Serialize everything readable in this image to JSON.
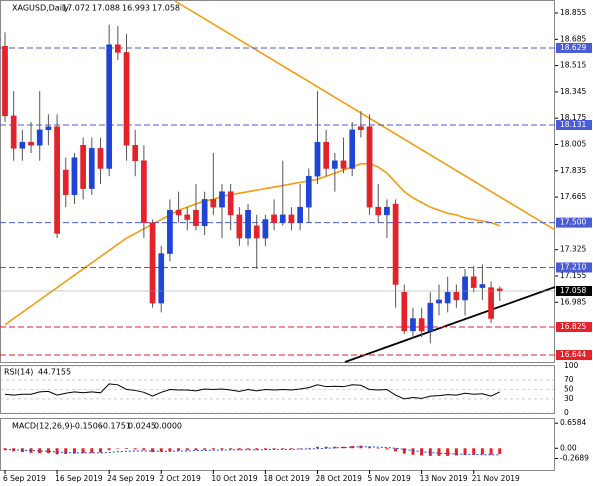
{
  "chart_data": {
    "type": "candlestick",
    "title": "XAGUSD,Daily",
    "categories": [
      "6 Sep 2019",
      null,
      null,
      null,
      null,
      null,
      "16 Sep 2019",
      null,
      null,
      null,
      null,
      null,
      "24 Sep 2019",
      null,
      null,
      null,
      null,
      null,
      "2 Oct 2019",
      null,
      null,
      null,
      null,
      null,
      "10 Oct 2019",
      null,
      null,
      null,
      null,
      null,
      "18 Oct 2019",
      null,
      null,
      null,
      null,
      null,
      "28 Oct 2019",
      null,
      null,
      null,
      null,
      null,
      "5 Nov 2019",
      null,
      null,
      null,
      null,
      null,
      "13 Nov 2019",
      null,
      null,
      null,
      null,
      null,
      "21 Nov 2019",
      null,
      null,
      null
    ],
    "open": [
      18.64,
      18.19,
      17.98,
      18.02,
      18.0,
      18.1,
      18.12,
      17.84,
      17.68,
      18.0,
      17.72,
      17.98,
      17.85,
      18.65,
      18.6,
      18.0,
      17.9,
      17.5,
      16.98,
      17.3,
      17.58,
      17.55,
      17.58,
      17.48,
      17.65,
      17.6,
      17.7,
      17.55,
      17.4,
      17.48,
      17.4,
      17.55,
      17.5,
      17.55,
      17.5,
      17.6,
      17.8,
      18.02,
      17.85,
      17.9,
      17.85,
      18.12,
      18.12,
      17.6,
      17.55,
      17.62,
      17.05,
      16.8,
      16.88,
      16.8,
      16.98,
      16.98,
      17.05,
      17.0,
      17.15,
      17.08,
      17.08,
      17.072
    ],
    "high": [
      18.73,
      18.35,
      18.1,
      18.15,
      18.35,
      18.2,
      18.2,
      17.92,
      17.95,
      18.05,
      18.05,
      18.05,
      18.78,
      18.77,
      18.72,
      18.1,
      18.0,
      17.52,
      17.35,
      17.65,
      17.7,
      17.6,
      17.75,
      17.7,
      17.95,
      17.75,
      17.75,
      17.6,
      17.62,
      17.55,
      17.55,
      17.65,
      17.9,
      17.6,
      17.75,
      17.85,
      18.35,
      18.1,
      17.95,
      18.05,
      18.15,
      18.22,
      18.2,
      17.75,
      17.65,
      17.65,
      17.1,
      16.95,
      16.95,
      17.05,
      17.1,
      17.15,
      17.1,
      17.2,
      17.22,
      17.23,
      17.12,
      17.088
    ],
    "low": [
      18.15,
      17.9,
      17.9,
      17.95,
      17.9,
      18.0,
      17.4,
      17.6,
      17.62,
      17.65,
      17.68,
      17.75,
      17.8,
      18.55,
      17.9,
      17.8,
      17.4,
      16.95,
      16.92,
      17.25,
      17.5,
      17.45,
      17.45,
      17.42,
      17.55,
      17.4,
      17.45,
      17.35,
      17.35,
      17.2,
      17.35,
      17.45,
      17.48,
      17.45,
      17.45,
      17.5,
      17.75,
      17.8,
      17.7,
      17.82,
      17.8,
      18.05,
      17.55,
      17.5,
      17.4,
      16.95,
      16.78,
      16.75,
      16.76,
      16.72,
      16.9,
      16.92,
      16.95,
      16.9,
      17.05,
      17.0,
      16.85,
      16.993
    ],
    "close": [
      18.19,
      17.98,
      18.02,
      18.0,
      18.1,
      18.12,
      17.43,
      17.68,
      17.92,
      17.72,
      17.98,
      17.85,
      18.65,
      18.6,
      18.0,
      17.9,
      17.5,
      16.98,
      17.3,
      17.58,
      17.55,
      17.52,
      17.48,
      17.65,
      17.6,
      17.7,
      17.55,
      17.4,
      17.58,
      17.4,
      17.52,
      17.5,
      17.55,
      17.5,
      17.6,
      17.8,
      18.02,
      17.85,
      17.9,
      17.85,
      18.1,
      18.1,
      17.6,
      17.55,
      17.6,
      17.1,
      16.8,
      16.88,
      16.8,
      16.98,
      17.0,
      17.05,
      17.0,
      17.15,
      17.08,
      17.1,
      16.88,
      17.058
    ],
    "up_color": "#1f45d6",
    "down_color": "#e3222a",
    "ma_color": "#f39c12",
    "ma_values": [
      16.84,
      16.88,
      16.92,
      16.96,
      17.0,
      17.04,
      17.08,
      17.12,
      17.16,
      17.2,
      17.24,
      17.28,
      17.32,
      17.36,
      17.4,
      17.43,
      17.46,
      17.49,
      17.52,
      17.55,
      17.58,
      17.6,
      17.62,
      17.64,
      17.65,
      17.67,
      17.68,
      17.69,
      17.7,
      17.71,
      17.72,
      17.73,
      17.74,
      17.75,
      17.76,
      17.77,
      17.78,
      17.8,
      17.82,
      17.84,
      17.86,
      17.88,
      17.88,
      17.86,
      17.82,
      17.76,
      17.7,
      17.66,
      17.63,
      17.6,
      17.58,
      17.56,
      17.55,
      17.53,
      17.52,
      17.51,
      17.5,
      17.48
    ],
    "ylim": [
      16.599,
      18.939
    ],
    "yticks": [
      18.855,
      18.685,
      18.515,
      18.345,
      18.175,
      18.005,
      17.835,
      17.665,
      17.325,
      17.155,
      16.985
    ],
    "levels": [
      {
        "value": 18.629,
        "color": "#4a5bd6"
      },
      {
        "value": 18.131,
        "color": "#4a5bd6"
      },
      {
        "value": 17.5,
        "label": "17.500",
        "color": "#4a5bd6"
      },
      {
        "value": 17.21,
        "label": "17.210",
        "color": "#4a5bd6"
      },
      {
        "value": 16.825,
        "color": "#e3222a"
      },
      {
        "value": 16.644,
        "color": "#e3222a"
      }
    ],
    "rsi_label": "RSI(14)",
    "rsi_values": [
      40,
      38,
      40,
      40,
      45,
      46,
      38,
      42,
      45,
      43,
      45,
      43,
      62,
      60,
      50,
      48,
      44,
      36,
      44,
      50,
      49,
      49,
      47,
      51,
      50,
      51,
      49,
      46,
      50,
      47,
      50,
      49,
      50,
      49,
      51,
      54,
      60,
      56,
      57,
      56,
      60,
      59,
      50,
      49,
      50,
      38,
      30,
      33,
      31,
      36,
      37,
      39,
      38,
      42,
      40,
      41,
      36,
      44.7155
    ],
    "rsi_ylim": [
      0,
      100
    ],
    "rsi_yticks": [
      100,
      70,
      50,
      30,
      0
    ],
    "macd_label": "MACD(12,26,9)",
    "macd_values": [
      -0.05,
      -0.08,
      -0.1,
      -0.12,
      -0.13,
      -0.13,
      -0.16,
      -0.15,
      -0.14,
      -0.13,
      -0.12,
      -0.11,
      -0.05,
      0.0,
      -0.02,
      -0.03,
      -0.05,
      -0.1,
      -0.09,
      -0.07,
      -0.06,
      -0.05,
      -0.05,
      -0.04,
      -0.03,
      -0.03,
      -0.03,
      -0.04,
      -0.03,
      -0.04,
      -0.03,
      -0.03,
      -0.02,
      -0.02,
      -0.01,
      0.01,
      0.04,
      0.04,
      0.04,
      0.04,
      0.06,
      0.07,
      0.03,
      0.0,
      -0.03,
      -0.08,
      -0.14,
      -0.17,
      -0.19,
      -0.2,
      -0.2,
      -0.2,
      -0.19,
      -0.18,
      -0.17,
      -0.16,
      -0.17,
      -0.1506
    ],
    "signal_values": [
      -0.03,
      -0.04,
      -0.05,
      -0.06,
      -0.07,
      -0.08,
      -0.1,
      -0.11,
      -0.12,
      -0.12,
      -0.12,
      -0.12,
      -0.11,
      -0.09,
      -0.08,
      -0.07,
      -0.07,
      -0.07,
      -0.08,
      -0.08,
      -0.07,
      -0.07,
      -0.06,
      -0.06,
      -0.05,
      -0.05,
      -0.04,
      -0.04,
      -0.04,
      -0.04,
      -0.04,
      -0.03,
      -0.03,
      -0.03,
      -0.02,
      -0.02,
      -0.01,
      0.0,
      0.01,
      0.02,
      0.03,
      0.04,
      0.04,
      0.03,
      0.02,
      0.0,
      -0.03,
      -0.06,
      -0.09,
      -0.11,
      -0.13,
      -0.14,
      -0.15,
      -0.16,
      -0.16,
      -0.17,
      -0.17,
      -0.1751
    ],
    "macd_extra": [
      "0.0245",
      "0.0000"
    ],
    "macd_ylim": [
      -0.57,
      0.768
    ],
    "macd_yticks": [
      0.6584,
      {
        "value": 0,
        "label": "0.00"
      },
      -0.2689
    ]
  }
}
